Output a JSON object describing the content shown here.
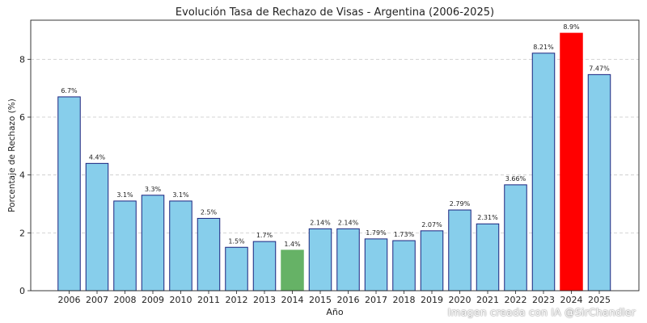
{
  "chart_data": {
    "type": "bar",
    "title": "Evolución Tasa de Rechazo de Visas - Argentina (2006-2025)",
    "xlabel": "Año",
    "ylabel": "Porcentaje de Rechazo (%)",
    "ylim": [
      0,
      9.35
    ],
    "yticks": [
      0,
      2,
      4,
      6,
      8
    ],
    "grid": true,
    "categories": [
      "2006",
      "2007",
      "2008",
      "2009",
      "2010",
      "2011",
      "2012",
      "2013",
      "2014",
      "2015",
      "2016",
      "2017",
      "2018",
      "2019",
      "2020",
      "2021",
      "2022",
      "2023",
      "2024",
      "2025"
    ],
    "values": [
      6.7,
      4.4,
      3.1,
      3.3,
      3.1,
      2.5,
      1.5,
      1.7,
      1.4,
      2.14,
      2.14,
      1.79,
      1.73,
      2.07,
      2.79,
      2.31,
      3.66,
      8.21,
      8.9,
      7.47
    ],
    "data_labels": [
      "6.7%",
      "4.4%",
      "3.1%",
      "3.3%",
      "3.1%",
      "2.5%",
      "1.5%",
      "1.7%",
      "1.4%",
      "2.14%",
      "2.14%",
      "1.79%",
      "1.73%",
      "2.07%",
      "2.79%",
      "2.31%",
      "3.66%",
      "8.21%",
      "8.9%",
      "7.47%"
    ],
    "colors": {
      "default": "#87ceeb",
      "default_edge": "#1a237e",
      "lowest": "#66b266",
      "highest": "#ff0000",
      "lowest_category": "2014",
      "highest_category": "2024"
    }
  },
  "watermark": "Imagen creada con IA @SirChandler"
}
